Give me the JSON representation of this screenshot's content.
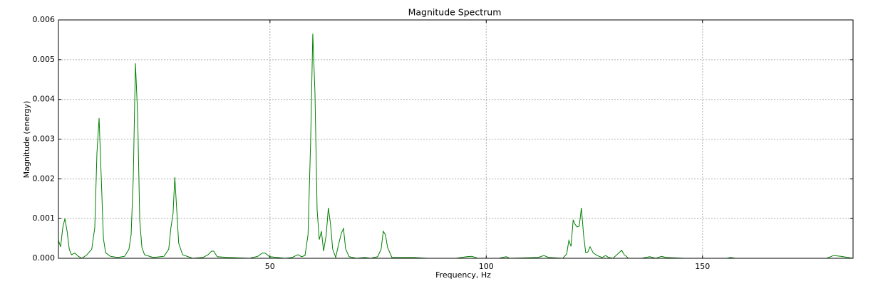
{
  "chart_data": {
    "type": "line",
    "title": "Magnitude Spectrum",
    "x_label": "Frequency, Hz",
    "y_label": "Magnitude (energy)",
    "xlim": [
      1.1,
      184.8
    ],
    "ylim": [
      0,
      0.006
    ],
    "xticks": [
      50,
      100,
      150
    ],
    "yticks": [
      {
        "value": 0,
        "label": "0.000"
      },
      {
        "value": 0.001,
        "label": "0.001"
      },
      {
        "value": 0.002,
        "label": "0.002"
      },
      {
        "value": 0.003,
        "label": "0.003"
      },
      {
        "value": 0.004,
        "label": "0.004"
      },
      {
        "value": 0.005,
        "label": "0.005"
      },
      {
        "value": 0.006,
        "label": "0.006"
      }
    ],
    "grid": true,
    "grid_color": "#b0b0b0",
    "x": [
      1.1,
      1.6,
      2.1,
      2.6,
      3.1,
      3.6,
      4.1,
      4.9,
      5.7,
      6.5,
      7.7,
      8.8,
      9.5,
      10.0,
      10.5,
      11.0,
      11.5,
      12.0,
      13.1,
      14.8,
      16.4,
      17.4,
      17.9,
      18.4,
      18.9,
      19.4,
      19.9,
      20.4,
      21.0,
      23.0,
      25.5,
      26.6,
      27.1,
      27.6,
      28.0,
      28.4,
      28.9,
      29.8,
      32.1,
      34.5,
      35.7,
      36.5,
      37.0,
      37.8,
      40.3,
      45.3,
      47.2,
      48.2,
      48.9,
      49.9,
      53.5,
      55.1,
      56.5,
      57.3,
      58.1,
      58.8,
      59.4,
      59.9,
      60.4,
      60.9,
      61.4,
      61.9,
      62.4,
      63.0,
      63.5,
      64.0,
      64.5,
      65.2,
      65.8,
      66.5,
      67.0,
      67.5,
      68.3,
      70.0,
      71.9,
      73.3,
      74.9,
      75.7,
      76.2,
      76.7,
      77.2,
      78.2,
      83.1,
      86.4,
      93.0,
      95.5,
      96.7,
      98.0,
      102.9,
      104.6,
      105.4,
      112.0,
      113.3,
      114.4,
      117.7,
      118.6,
      119.1,
      119.6,
      120.1,
      120.5,
      121.0,
      121.5,
      122.0,
      122.5,
      123.0,
      123.5,
      124.0,
      124.7,
      125.6,
      126.8,
      127.6,
      128.3,
      129.3,
      130.6,
      131.3,
      131.9,
      132.9,
      135.9,
      137.8,
      139.2,
      140.5,
      141.6,
      145.8,
      155.6,
      156.5,
      157.6,
      178.7,
      180.3,
      182.0,
      184.8
    ],
    "series": [
      {
        "color": "#008000",
        "values": [
          0.00045,
          0.00029,
          0.00077,
          0.001,
          0.00068,
          0.00023,
          9e-05,
          0.00013,
          5e-05,
          0,
          9e-05,
          0.00023,
          0.00077,
          0.00265,
          0.00353,
          0.00202,
          0.0005,
          0.00014,
          5e-05,
          2e-05,
          5e-05,
          0.00023,
          0.00059,
          0.00202,
          0.00491,
          0.00364,
          0.00095,
          0.00027,
          9e-05,
          2e-05,
          5e-05,
          0.00023,
          0.00077,
          0.00113,
          0.00204,
          0.00131,
          0.00038,
          9e-05,
          0,
          2e-05,
          9e-05,
          0.00018,
          0.00018,
          4e-05,
          2e-05,
          0,
          5e-05,
          0.00013,
          0.00013,
          4e-05,
          0,
          2e-05,
          9e-05,
          4e-05,
          7e-05,
          0.00059,
          0.00292,
          0.00565,
          0.00418,
          0.00122,
          0.00047,
          0.00068,
          0.00018,
          0.00059,
          0.00127,
          0.00086,
          0.00023,
          2e-05,
          0.00032,
          0.00063,
          0.00075,
          0.00023,
          4e-05,
          0,
          2e-05,
          0,
          4e-05,
          0.00023,
          0.00068,
          0.00059,
          0.00027,
          2e-05,
          2e-05,
          0,
          0,
          4e-05,
          5e-05,
          0,
          0,
          4e-05,
          0,
          2e-05,
          7e-05,
          2e-05,
          0,
          0.00011,
          0.00045,
          0.0003,
          0.00097,
          0.00086,
          0.00079,
          0.00081,
          0.00127,
          0.00059,
          0.00014,
          0.00016,
          0.00029,
          0.00014,
          7e-05,
          2e-05,
          7e-05,
          2e-05,
          0,
          0.00013,
          0.0002,
          9e-05,
          0,
          0,
          4e-05,
          0,
          5e-05,
          2e-05,
          0,
          0,
          2e-05,
          0,
          0,
          7e-05,
          5e-05,
          0
        ]
      }
    ]
  }
}
